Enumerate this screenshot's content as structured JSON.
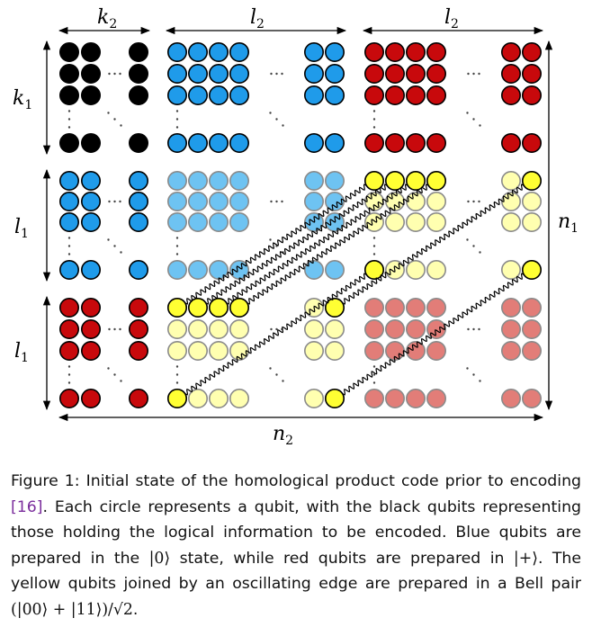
{
  "figure": {
    "labels": {
      "k2": {
        "base": "k",
        "sub": "2"
      },
      "l2a": {
        "base": "l",
        "sub": "2"
      },
      "l2b": {
        "base": "l",
        "sub": "2"
      },
      "k1": {
        "base": "k",
        "sub": "1"
      },
      "l1a": {
        "base": "l",
        "sub": "1"
      },
      "l1b": {
        "base": "l",
        "sub": "1"
      },
      "n1": {
        "base": "n",
        "sub": "1"
      },
      "n2": {
        "base": "n",
        "sub": "2"
      }
    },
    "colors": {
      "black": "#000000",
      "blue": "#1f9bea",
      "light_blue": "#6ec3f2",
      "red": "#c8090c",
      "light_red": "#e27d78",
      "yellow": "#ffff33",
      "light_yellow": "#ffffb0",
      "text": "#000000",
      "citation": "#7a2d9c"
    },
    "block_grid": [
      [
        "black",
        "blue",
        "red"
      ],
      [
        "blue",
        "light_blue",
        "light_yellow"
      ],
      [
        "red",
        "light_yellow",
        "light_red"
      ]
    ]
  },
  "caption": {
    "prefix": "Figure 1: Initial state of the homological product code prior to encoding ",
    "citation": "[16]",
    "body": ". Each circle represents a qubit, with the black qubits representing those holding the logical information to be encoded. Blue qubits are prepared in the ",
    "ket0": "|0⟩",
    "middle": " state, while red qubits are prepared in ",
    "ketplus": "|+⟩",
    "end": ". The yellow qubits joined by an oscillating edge are prepared in a Bell pair ",
    "bell": "(|00⟩ + |11⟩)/√2",
    "period": "."
  }
}
